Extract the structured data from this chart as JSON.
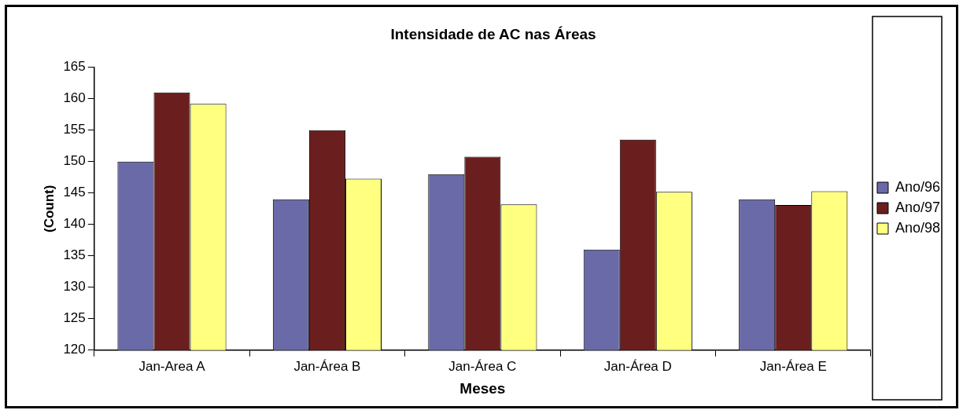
{
  "chart_data": {
    "type": "bar",
    "title": "Intensidade de AC nas Áreas",
    "xlabel": "Meses",
    "ylabel": "(Count)",
    "categories": [
      "Jan-Area A",
      "Jan-Área B",
      "Jan-Área C",
      "Jan-Área D",
      "Jan-Área E"
    ],
    "series": [
      {
        "name": "Ano/96",
        "color": "#6a6aa8",
        "values": [
          150,
          144,
          148,
          136,
          144
        ]
      },
      {
        "name": "Ano/97",
        "color": "#6b1e1e",
        "values": [
          161,
          155,
          150.8,
          153.5,
          143.1
        ]
      },
      {
        "name": "Ano/98",
        "color": "#ffff80",
        "values": [
          159.2,
          147.3,
          143.2,
          145.2,
          145.3
        ]
      }
    ],
    "ylim": [
      120,
      165
    ],
    "yticks": [
      120,
      125,
      130,
      135,
      140,
      145,
      150,
      155,
      160,
      165
    ],
    "grid": false,
    "legend": "right"
  }
}
